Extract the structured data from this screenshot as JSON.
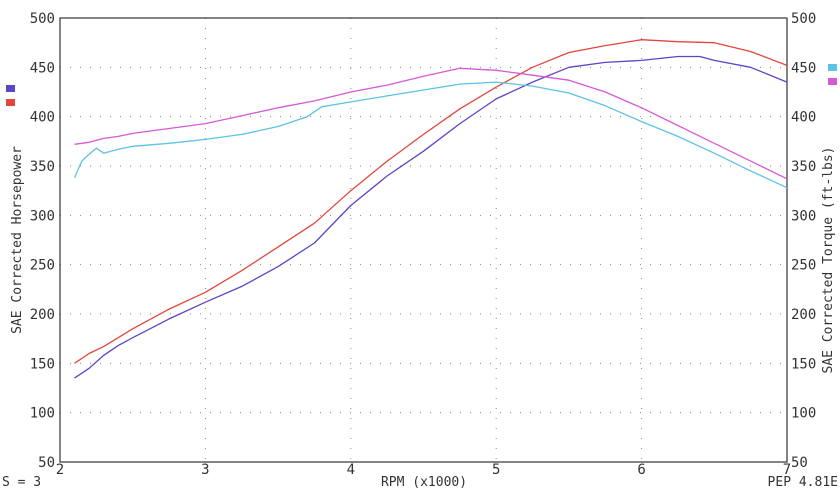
{
  "chart_data": {
    "type": "line",
    "xlabel": "RPM (x1000)",
    "ylabel_left": "SAE Corrected Horsepower",
    "ylabel_right": "SAE Corrected Torque (ft-lbs)",
    "xlim": [
      2,
      7
    ],
    "ylim": [
      50,
      500
    ],
    "x_ticks": [
      "2",
      "3",
      "4",
      "5",
      "6",
      "7"
    ],
    "y_ticks": [
      "50",
      "100",
      "150",
      "200",
      "250",
      "300",
      "350",
      "400",
      "450",
      "500"
    ],
    "grid": true,
    "legend_left": [
      {
        "color": "#5b45c8"
      },
      {
        "color": "#e2463c"
      }
    ],
    "legend_right": [
      {
        "color": "#5cc2e6"
      },
      {
        "color": "#d45ad6"
      }
    ],
    "series": [
      {
        "color": "#5b45c8",
        "axis": "left",
        "x": [
          2.1,
          2.2,
          2.3,
          2.4,
          2.5,
          2.75,
          3.0,
          3.25,
          3.5,
          3.75,
          4.0,
          4.25,
          4.5,
          4.75,
          5.0,
          5.25,
          5.5,
          5.75,
          6.0,
          6.25,
          6.4,
          6.5,
          6.75,
          7.0
        ],
        "y": [
          135,
          145,
          158,
          168,
          176,
          195,
          212,
          228,
          248,
          272,
          310,
          340,
          365,
          393,
          418,
          435,
          450,
          455,
          457,
          461,
          461,
          457,
          450,
          435
        ]
      },
      {
        "color": "#e2463c",
        "axis": "left",
        "x": [
          2.1,
          2.2,
          2.3,
          2.4,
          2.5,
          2.75,
          3.0,
          3.25,
          3.5,
          3.75,
          4.0,
          4.25,
          4.5,
          4.75,
          5.0,
          5.25,
          5.5,
          5.75,
          6.0,
          6.25,
          6.5,
          6.75,
          7.0
        ],
        "y": [
          150,
          160,
          167,
          176,
          185,
          205,
          222,
          244,
          268,
          292,
          325,
          355,
          382,
          408,
          430,
          450,
          465,
          472,
          478,
          476,
          475,
          466,
          452
        ]
      },
      {
        "color": "#5cc2e6",
        "axis": "right",
        "x": [
          2.1,
          2.15,
          2.2,
          2.25,
          2.3,
          2.4,
          2.5,
          2.75,
          3.0,
          3.25,
          3.5,
          3.7,
          3.8,
          4.0,
          4.25,
          4.5,
          4.75,
          5.0,
          5.25,
          5.5,
          5.75,
          6.0,
          6.25,
          6.5,
          6.75,
          7.0
        ],
        "y": [
          338,
          355,
          362,
          368,
          363,
          367,
          370,
          373,
          377,
          382,
          390,
          400,
          410,
          415,
          421,
          427,
          433,
          435,
          431,
          424,
          411,
          395,
          380,
          363,
          345,
          328
        ]
      },
      {
        "color": "#d45ad6",
        "axis": "right",
        "x": [
          2.1,
          2.2,
          2.3,
          2.4,
          2.5,
          2.75,
          3.0,
          3.25,
          3.5,
          3.75,
          4.0,
          4.25,
          4.5,
          4.75,
          5.0,
          5.25,
          5.5,
          5.75,
          6.0,
          6.25,
          6.5,
          6.75,
          7.0
        ],
        "y": [
          372,
          374,
          378,
          380,
          383,
          388,
          393,
          401,
          409,
          416,
          425,
          432,
          441,
          449,
          447,
          442,
          437,
          425,
          409,
          391,
          373,
          355,
          337
        ]
      }
    ]
  },
  "footer": {
    "smoothing": "S = 3",
    "version": "PEP 4.81E"
  }
}
